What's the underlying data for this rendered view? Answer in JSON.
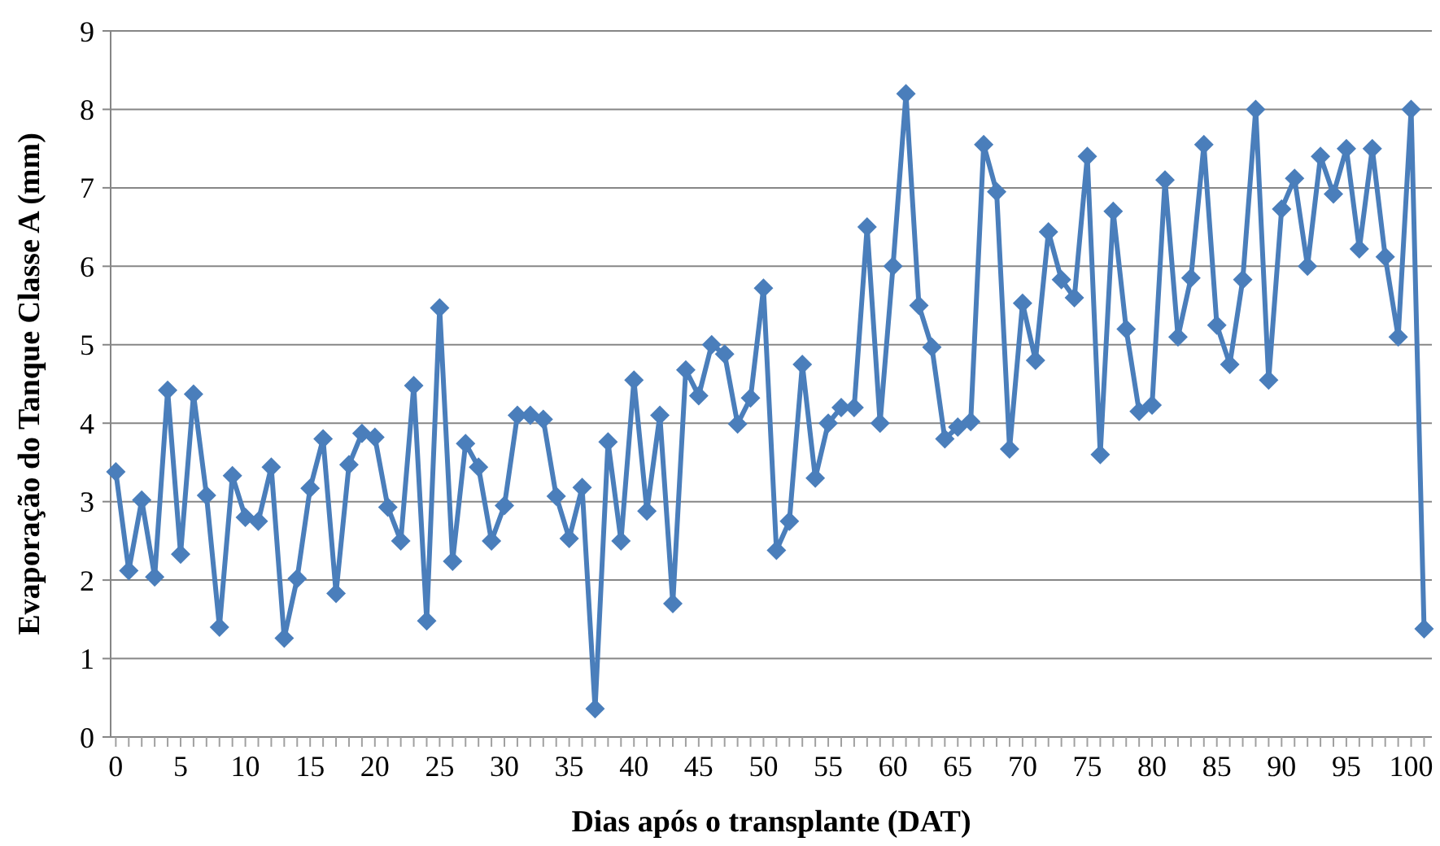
{
  "chart_data": {
    "type": "line",
    "xlabel": "Dias após o transplante (DAT)",
    "ylabel": "Evaporação do Tanque Classe A (mm)",
    "x": [
      0,
      1,
      2,
      3,
      4,
      5,
      6,
      7,
      8,
      9,
      10,
      11,
      12,
      13,
      14,
      15,
      16,
      17,
      18,
      19,
      20,
      21,
      22,
      23,
      24,
      25,
      26,
      27,
      28,
      29,
      30,
      31,
      32,
      33,
      34,
      35,
      36,
      37,
      38,
      39,
      40,
      41,
      42,
      43,
      44,
      45,
      46,
      47,
      48,
      49,
      50,
      51,
      52,
      53,
      54,
      55,
      56,
      57,
      58,
      59,
      60,
      61,
      62,
      63,
      64,
      65,
      66,
      67,
      68,
      69,
      70,
      71,
      72,
      73,
      74,
      75,
      76,
      77,
      78,
      79,
      80,
      81,
      82,
      83,
      84,
      85,
      86,
      87,
      88,
      89,
      90,
      91,
      92,
      93,
      94,
      95,
      96,
      97,
      98,
      99,
      100,
      101
    ],
    "series": [
      {
        "color": "#4a7ebb",
        "values": [
          3.38,
          2.12,
          3.02,
          2.04,
          4.42,
          2.33,
          4.37,
          3.08,
          1.4,
          3.33,
          2.8,
          2.75,
          3.44,
          1.26,
          2.02,
          3.17,
          3.8,
          1.83,
          3.47,
          3.87,
          3.82,
          2.93,
          2.5,
          4.48,
          1.48,
          5.47,
          2.24,
          3.74,
          3.44,
          2.5,
          2.95,
          4.1,
          4.1,
          4.05,
          3.07,
          2.53,
          3.18,
          0.36,
          3.76,
          2.5,
          4.55,
          2.88,
          4.1,
          1.7,
          4.68,
          4.35,
          5.0,
          4.88,
          3.99,
          4.32,
          5.72,
          2.38,
          2.75,
          4.75,
          3.3,
          4.0,
          4.2,
          4.2,
          6.5,
          4.0,
          6.0,
          8.2,
          5.5,
          4.97,
          3.8,
          3.95,
          4.02,
          7.55,
          6.95,
          3.67,
          5.53,
          4.8,
          6.44,
          5.83,
          5.6,
          7.4,
          3.6,
          6.7,
          5.2,
          4.15,
          4.23,
          7.1,
          5.1,
          5.85,
          7.55,
          5.25,
          4.75,
          5.83,
          8.0,
          4.55,
          6.73,
          7.12,
          6.0,
          7.4,
          6.92,
          7.5,
          6.22,
          7.5,
          6.12,
          5.1,
          8.0,
          1.38
        ]
      }
    ],
    "xlim": [
      -0.4,
      101.6
    ],
    "xticks": [
      0,
      5,
      10,
      15,
      20,
      25,
      30,
      35,
      40,
      45,
      50,
      55,
      60,
      65,
      70,
      75,
      80,
      85,
      90,
      95,
      100
    ],
    "ylim": [
      0,
      9
    ],
    "yticks": [
      0,
      1,
      2,
      3,
      4,
      5,
      6,
      7,
      8,
      9
    ],
    "grid": "y",
    "marker": "diamond",
    "line_style": "solid"
  }
}
